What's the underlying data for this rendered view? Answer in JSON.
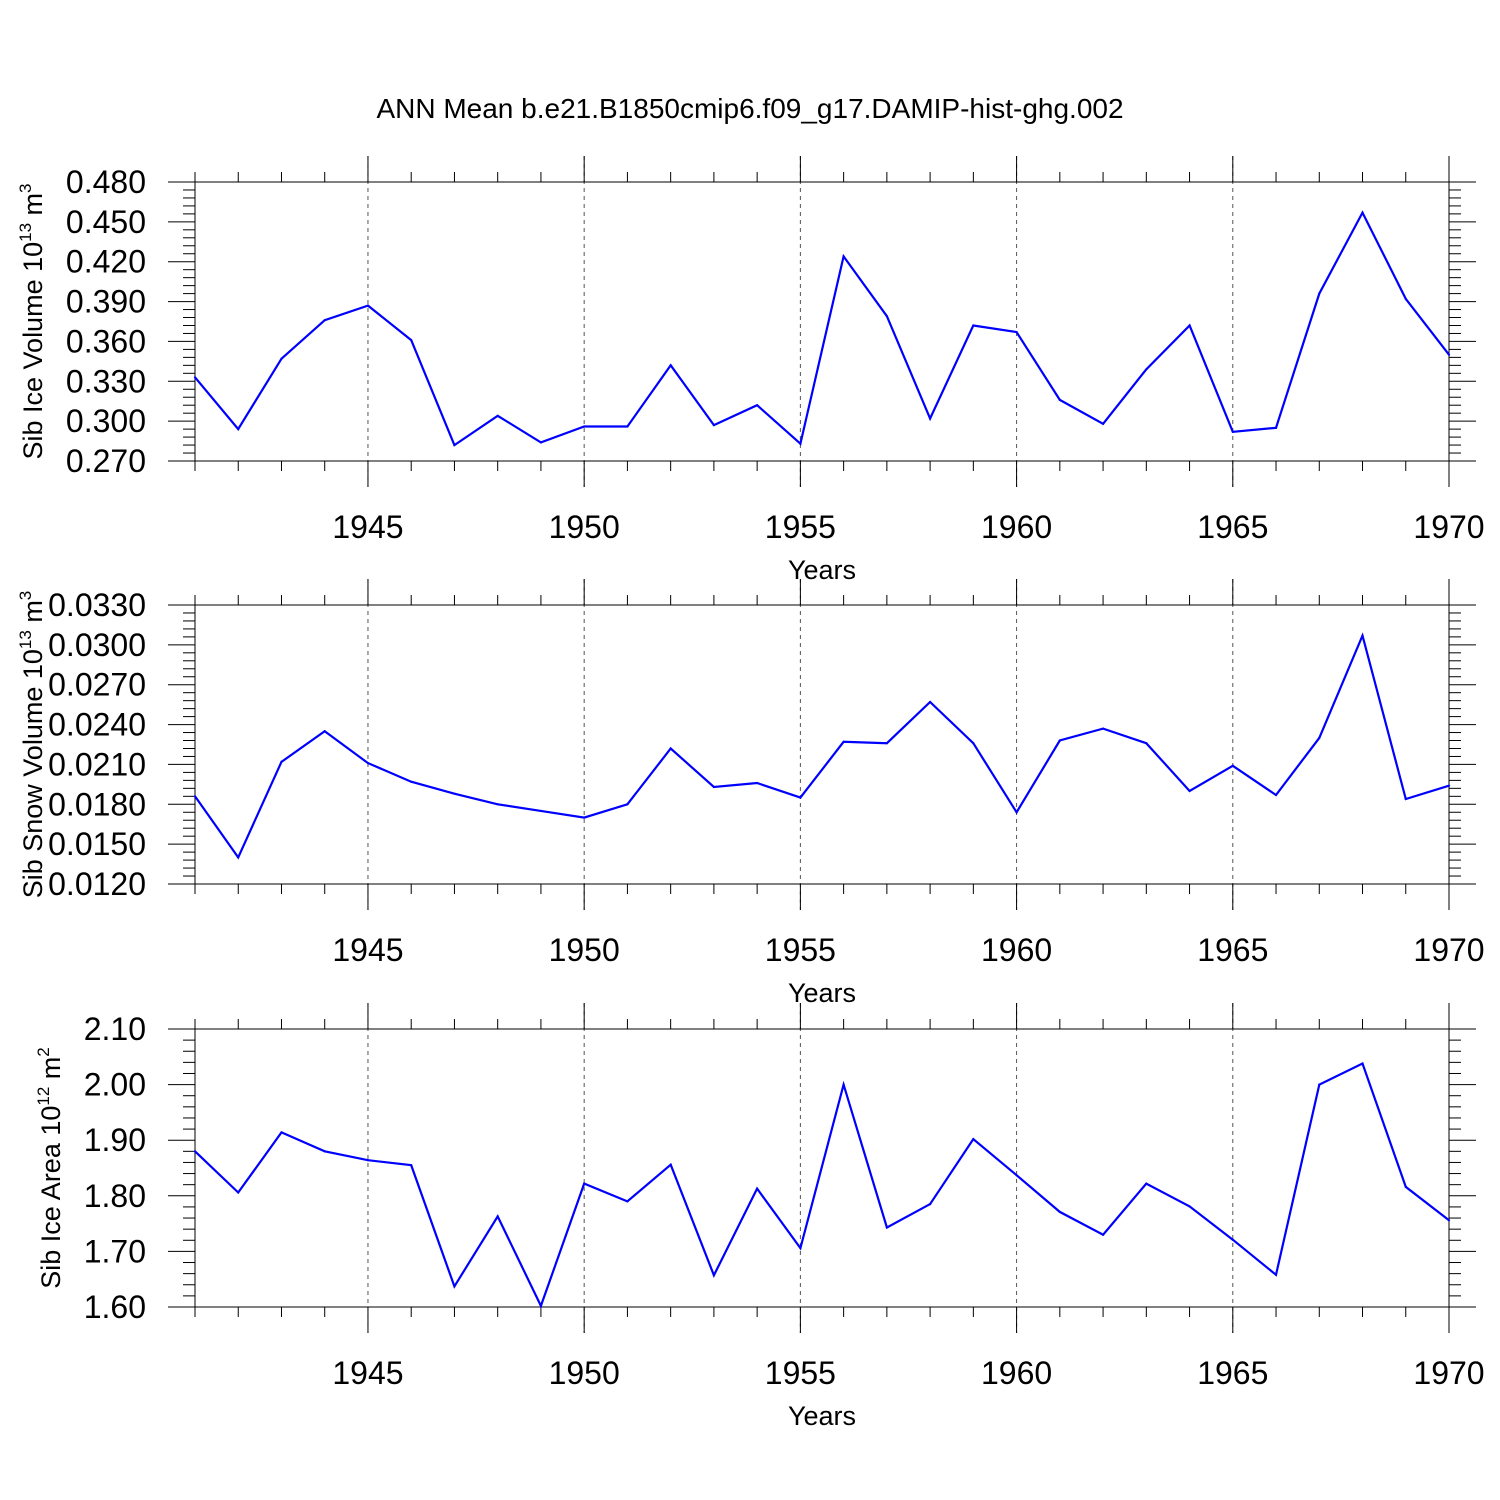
{
  "figure_title": "ANN Mean b.e21.B1850cmip6.f09_g17.DAMIP-hist-ghg.002",
  "colors": {
    "series": "#0000ff",
    "axis": "#000000",
    "grid": "#555555",
    "background": "#ffffff"
  },
  "chart_data": [
    {
      "type": "line",
      "name": "sib-ice-volume",
      "ylabel_main": "Sib Ice Volume 10",
      "ylabel_exp": "13",
      "ylabel_unit": " m",
      "ylabel_unit_exp": "3",
      "xlabel": "Years",
      "xlim": [
        1941,
        1970
      ],
      "ylim": [
        0.27,
        0.48
      ],
      "yticks": [
        0.27,
        0.3,
        0.33,
        0.36,
        0.39,
        0.42,
        0.45,
        0.48
      ],
      "ytick_labels": [
        "0.270",
        "0.300",
        "0.330",
        "0.360",
        "0.390",
        "0.420",
        "0.450",
        "0.480"
      ],
      "xticks": [
        1945,
        1950,
        1955,
        1960,
        1965,
        1970
      ],
      "xtick_labels": [
        "1945",
        "1950",
        "1955",
        "1960",
        "1965",
        "1970"
      ],
      "grid_x": [
        1945,
        1950,
        1955,
        1960,
        1965
      ],
      "x": [
        1941,
        1942,
        1943,
        1944,
        1945,
        1946,
        1947,
        1948,
        1949,
        1950,
        1951,
        1952,
        1953,
        1954,
        1955,
        1956,
        1957,
        1958,
        1959,
        1960,
        1961,
        1962,
        1963,
        1964,
        1965,
        1966,
        1967,
        1968,
        1969,
        1970
      ],
      "values": [
        0.333,
        0.294,
        0.347,
        0.376,
        0.387,
        0.361,
        0.282,
        0.304,
        0.284,
        0.296,
        0.296,
        0.342,
        0.297,
        0.312,
        0.283,
        0.424,
        0.379,
        0.302,
        0.372,
        0.367,
        0.316,
        0.298,
        0.339,
        0.372,
        0.292,
        0.295,
        0.396,
        0.457,
        0.392,
        0.35
      ]
    },
    {
      "type": "line",
      "name": "sib-snow-volume",
      "ylabel_main": "Sib Snow Volume 10",
      "ylabel_exp": "13",
      "ylabel_unit": " m",
      "ylabel_unit_exp": "3",
      "xlabel": "Years",
      "xlim": [
        1941,
        1970
      ],
      "ylim": [
        0.012,
        0.033
      ],
      "yticks": [
        0.012,
        0.015,
        0.018,
        0.021,
        0.024,
        0.027,
        0.03,
        0.033
      ],
      "ytick_labels": [
        "0.0120",
        "0.0150",
        "0.0180",
        "0.0210",
        "0.0240",
        "0.0270",
        "0.0300",
        "0.0330"
      ],
      "xticks": [
        1945,
        1950,
        1955,
        1960,
        1965,
        1970
      ],
      "xtick_labels": [
        "1945",
        "1950",
        "1955",
        "1960",
        "1965",
        "1970"
      ],
      "grid_x": [
        1945,
        1950,
        1955,
        1960,
        1965
      ],
      "x": [
        1941,
        1942,
        1943,
        1944,
        1945,
        1946,
        1947,
        1948,
        1949,
        1950,
        1951,
        1952,
        1953,
        1954,
        1955,
        1956,
        1957,
        1958,
        1959,
        1960,
        1961,
        1962,
        1963,
        1964,
        1965,
        1966,
        1967,
        1968,
        1969,
        1970
      ],
      "values": [
        0.0186,
        0.014,
        0.0212,
        0.0235,
        0.0211,
        0.0197,
        0.0188,
        0.018,
        0.0175,
        0.017,
        0.018,
        0.0222,
        0.0193,
        0.0196,
        0.0185,
        0.0227,
        0.0226,
        0.0257,
        0.0226,
        0.0174,
        0.0228,
        0.0237,
        0.0226,
        0.019,
        0.0209,
        0.0187,
        0.023,
        0.0307,
        0.0184,
        0.0194
      ]
    },
    {
      "type": "line",
      "name": "sib-ice-area",
      "ylabel_main": "Sib Ice Area 10",
      "ylabel_exp": "12",
      "ylabel_unit": " m",
      "ylabel_unit_exp": "2",
      "xlabel": "Years",
      "xlim": [
        1941,
        1970
      ],
      "ylim": [
        1.6,
        2.1
      ],
      "yticks": [
        1.6,
        1.7,
        1.8,
        1.9,
        2.0,
        2.1
      ],
      "ytick_labels": [
        "1.60",
        "1.70",
        "1.80",
        "1.90",
        "2.00",
        "2.10"
      ],
      "xticks": [
        1945,
        1950,
        1955,
        1960,
        1965,
        1970
      ],
      "xtick_labels": [
        "1945",
        "1950",
        "1955",
        "1960",
        "1965",
        "1970"
      ],
      "grid_x": [
        1945,
        1950,
        1955,
        1960,
        1965
      ],
      "x": [
        1941,
        1942,
        1943,
        1944,
        1945,
        1946,
        1947,
        1948,
        1949,
        1950,
        1951,
        1952,
        1953,
        1954,
        1955,
        1956,
        1957,
        1958,
        1959,
        1960,
        1961,
        1962,
        1963,
        1964,
        1965,
        1966,
        1967,
        1968,
        1969,
        1970
      ],
      "values": [
        1.88,
        1.806,
        1.914,
        1.88,
        1.864,
        1.855,
        1.637,
        1.763,
        1.602,
        1.822,
        1.79,
        1.856,
        1.657,
        1.813,
        1.706,
        2.0,
        1.743,
        1.785,
        1.902,
        1.837,
        1.771,
        1.73,
        1.822,
        1.781,
        1.721,
        1.658,
        2.0,
        2.038,
        1.816,
        1.756
      ]
    }
  ]
}
